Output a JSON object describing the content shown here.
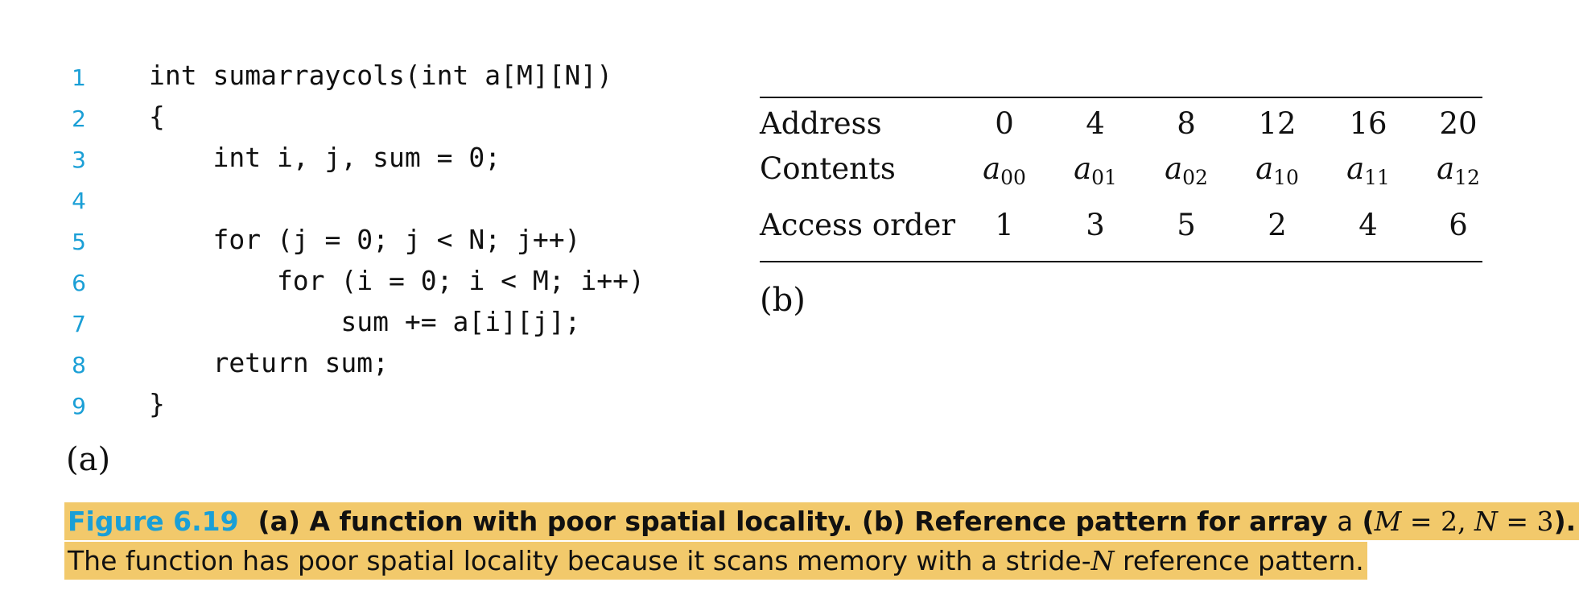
{
  "code": {
    "lines": [
      {
        "num": "1",
        "text": "int sumarraycols(int a[M][N])"
      },
      {
        "num": "2",
        "text": "{"
      },
      {
        "num": "3",
        "text": "    int i, j, sum = 0;"
      },
      {
        "num": "4",
        "text": ""
      },
      {
        "num": "5",
        "text": "    for (j = 0; j < N; j++)"
      },
      {
        "num": "6",
        "text": "        for (i = 0; i < M; i++)"
      },
      {
        "num": "7",
        "text": "            sum += a[i][j];"
      },
      {
        "num": "8",
        "text": "    return sum;"
      },
      {
        "num": "9",
        "text": "}"
      }
    ],
    "label": "(a)"
  },
  "table": {
    "address_label": "Address",
    "contents_label": "Contents",
    "access_label": "Access order",
    "addresses": [
      "0",
      "4",
      "8",
      "12",
      "16",
      "20"
    ],
    "contents": [
      {
        "base": "a",
        "sub": "00"
      },
      {
        "base": "a",
        "sub": "01"
      },
      {
        "base": "a",
        "sub": "02"
      },
      {
        "base": "a",
        "sub": "10"
      },
      {
        "base": "a",
        "sub": "11"
      },
      {
        "base": "a",
        "sub": "12"
      }
    ],
    "access_order": [
      "1",
      "3",
      "5",
      "2",
      "4",
      "6"
    ],
    "label": "(b)"
  },
  "caption": {
    "figure": "Figure 6.19",
    "title_part1": "(a) A function with poor spatial locality. (b) Reference pattern for array",
    "title_array": "a",
    "paren_open": "(",
    "var_m": "M",
    "eq_m": " = 2, ",
    "var_n": "N",
    "eq_n": " = 3",
    "paren_close": ").",
    "body_part1": "The function has poor spatial locality because it scans memory with a stride-",
    "body_var": "N",
    "body_part2": " reference pattern."
  }
}
